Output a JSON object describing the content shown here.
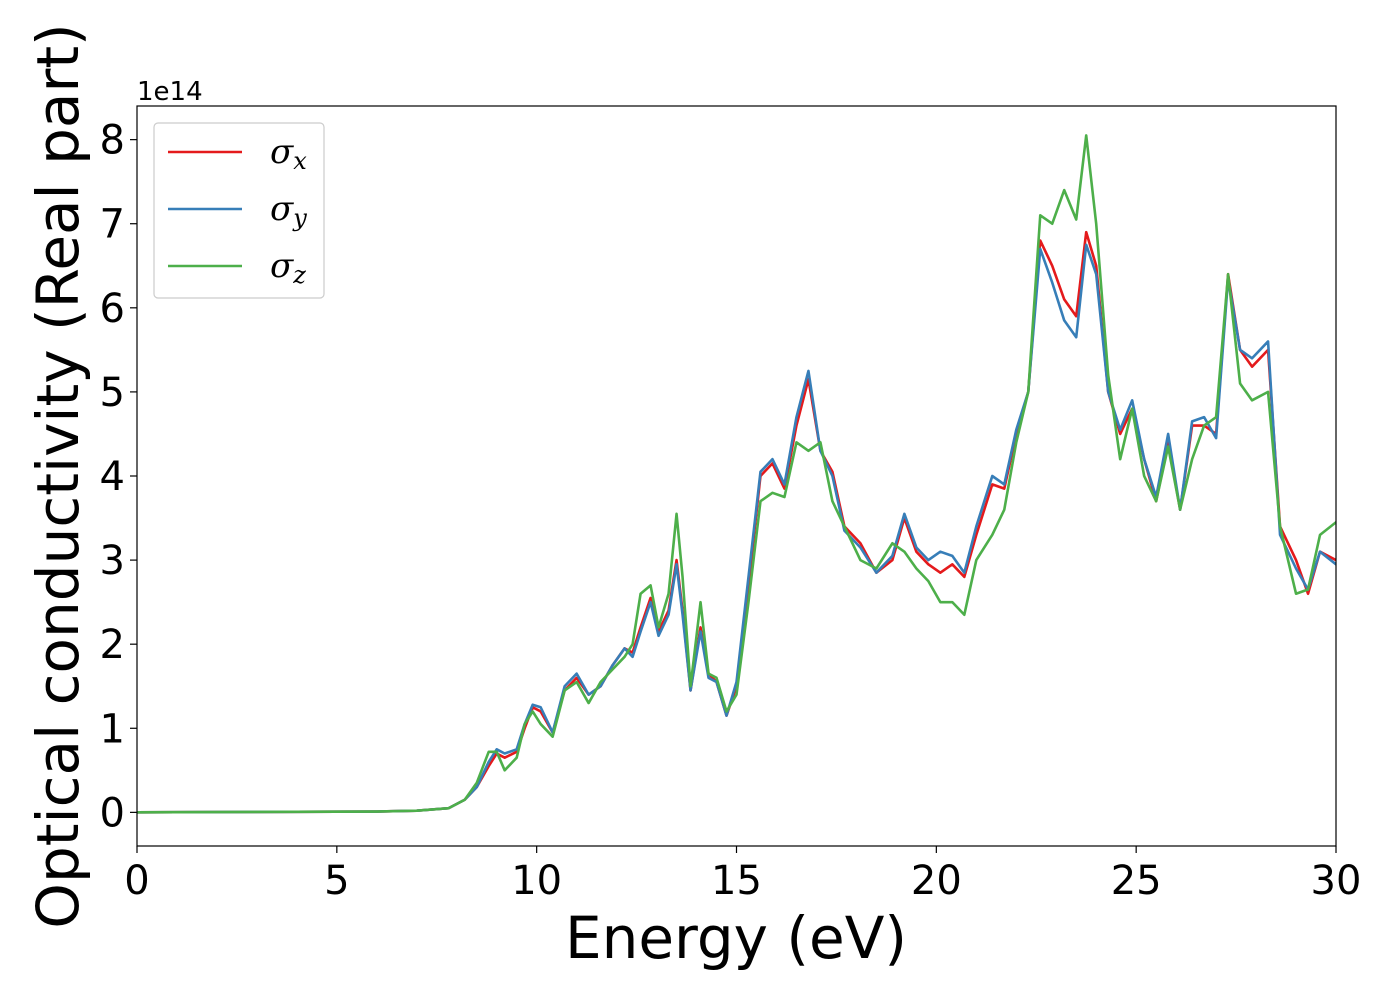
{
  "chart_data": {
    "type": "line",
    "title": "",
    "xlabel": "Energy (eV)",
    "ylabel": "Optical conductivity (Real part)",
    "y_offset_label": "1e14",
    "xlim": [
      0,
      30
    ],
    "ylim": [
      -0.4,
      8.4
    ],
    "x_ticks": [
      0,
      5,
      10,
      15,
      20,
      25,
      30
    ],
    "y_ticks": [
      0,
      1,
      2,
      3,
      4,
      5,
      6,
      7,
      8
    ],
    "grid": false,
    "legend_position": "upper-left",
    "series": [
      {
        "name": "σx",
        "symbol": "σ",
        "subscript": "x",
        "color": "#e41a1c",
        "points": [
          [
            0,
            0
          ],
          [
            6,
            0.01
          ],
          [
            7,
            0.02
          ],
          [
            7.8,
            0.05
          ],
          [
            8.2,
            0.15
          ],
          [
            8.5,
            0.3
          ],
          [
            8.8,
            0.55
          ],
          [
            9.0,
            0.7
          ],
          [
            9.2,
            0.65
          ],
          [
            9.5,
            0.72
          ],
          [
            9.7,
            1.0
          ],
          [
            9.9,
            1.25
          ],
          [
            10.1,
            1.2
          ],
          [
            10.4,
            0.95
          ],
          [
            10.7,
            1.45
          ],
          [
            11.0,
            1.6
          ],
          [
            11.3,
            1.4
          ],
          [
            11.6,
            1.5
          ],
          [
            11.9,
            1.75
          ],
          [
            12.2,
            1.95
          ],
          [
            12.4,
            1.9
          ],
          [
            12.6,
            2.2
          ],
          [
            12.85,
            2.55
          ],
          [
            13.05,
            2.15
          ],
          [
            13.3,
            2.4
          ],
          [
            13.5,
            3.0
          ],
          [
            13.65,
            2.4
          ],
          [
            13.85,
            1.45
          ],
          [
            14.1,
            2.2
          ],
          [
            14.3,
            1.65
          ],
          [
            14.5,
            1.55
          ],
          [
            14.75,
            1.15
          ],
          [
            15.0,
            1.5
          ],
          [
            15.3,
            2.7
          ],
          [
            15.6,
            4.0
          ],
          [
            15.9,
            4.15
          ],
          [
            16.2,
            3.85
          ],
          [
            16.5,
            4.6
          ],
          [
            16.8,
            5.15
          ],
          [
            17.1,
            4.3
          ],
          [
            17.4,
            4.05
          ],
          [
            17.7,
            3.4
          ],
          [
            18.1,
            3.2
          ],
          [
            18.5,
            2.85
          ],
          [
            18.9,
            3.0
          ],
          [
            19.2,
            3.5
          ],
          [
            19.5,
            3.1
          ],
          [
            19.8,
            2.95
          ],
          [
            20.1,
            2.85
          ],
          [
            20.4,
            2.95
          ],
          [
            20.7,
            2.8
          ],
          [
            21.0,
            3.3
          ],
          [
            21.4,
            3.9
          ],
          [
            21.7,
            3.85
          ],
          [
            22.0,
            4.5
          ],
          [
            22.3,
            5.0
          ],
          [
            22.6,
            6.8
          ],
          [
            22.9,
            6.5
          ],
          [
            23.2,
            6.1
          ],
          [
            23.5,
            5.9
          ],
          [
            23.75,
            6.9
          ],
          [
            24.0,
            6.5
          ],
          [
            24.3,
            5.0
          ],
          [
            24.6,
            4.5
          ],
          [
            24.9,
            4.8
          ],
          [
            25.2,
            4.2
          ],
          [
            25.5,
            3.7
          ],
          [
            25.8,
            4.4
          ],
          [
            26.1,
            3.6
          ],
          [
            26.4,
            4.6
          ],
          [
            26.7,
            4.6
          ],
          [
            27.0,
            4.5
          ],
          [
            27.3,
            6.4
          ],
          [
            27.6,
            5.5
          ],
          [
            27.9,
            5.3
          ],
          [
            28.3,
            5.5
          ],
          [
            28.6,
            3.4
          ],
          [
            29.0,
            3.0
          ],
          [
            29.3,
            2.6
          ],
          [
            29.6,
            3.1
          ],
          [
            30.0,
            3.0
          ]
        ]
      },
      {
        "name": "σy",
        "symbol": "σ",
        "subscript": "y",
        "color": "#377eb8",
        "points": [
          [
            0,
            0
          ],
          [
            6,
            0.01
          ],
          [
            7,
            0.02
          ],
          [
            7.8,
            0.05
          ],
          [
            8.2,
            0.15
          ],
          [
            8.5,
            0.3
          ],
          [
            8.8,
            0.6
          ],
          [
            9.0,
            0.75
          ],
          [
            9.2,
            0.7
          ],
          [
            9.5,
            0.75
          ],
          [
            9.7,
            1.05
          ],
          [
            9.9,
            1.28
          ],
          [
            10.1,
            1.25
          ],
          [
            10.4,
            0.95
          ],
          [
            10.7,
            1.5
          ],
          [
            11.0,
            1.65
          ],
          [
            11.3,
            1.4
          ],
          [
            11.6,
            1.5
          ],
          [
            11.9,
            1.75
          ],
          [
            12.2,
            1.95
          ],
          [
            12.4,
            1.85
          ],
          [
            12.6,
            2.15
          ],
          [
            12.85,
            2.5
          ],
          [
            13.05,
            2.1
          ],
          [
            13.3,
            2.35
          ],
          [
            13.5,
            2.95
          ],
          [
            13.65,
            2.35
          ],
          [
            13.85,
            1.45
          ],
          [
            14.1,
            2.15
          ],
          [
            14.3,
            1.6
          ],
          [
            14.5,
            1.55
          ],
          [
            14.75,
            1.15
          ],
          [
            15.0,
            1.55
          ],
          [
            15.3,
            2.8
          ],
          [
            15.6,
            4.05
          ],
          [
            15.9,
            4.2
          ],
          [
            16.2,
            3.9
          ],
          [
            16.5,
            4.7
          ],
          [
            16.8,
            5.25
          ],
          [
            17.1,
            4.3
          ],
          [
            17.4,
            4.0
          ],
          [
            17.7,
            3.35
          ],
          [
            18.1,
            3.15
          ],
          [
            18.5,
            2.85
          ],
          [
            18.9,
            3.05
          ],
          [
            19.2,
            3.55
          ],
          [
            19.5,
            3.15
          ],
          [
            19.8,
            3.0
          ],
          [
            20.1,
            3.1
          ],
          [
            20.4,
            3.05
          ],
          [
            20.7,
            2.85
          ],
          [
            21.0,
            3.4
          ],
          [
            21.4,
            4.0
          ],
          [
            21.7,
            3.9
          ],
          [
            22.0,
            4.55
          ],
          [
            22.3,
            5.0
          ],
          [
            22.6,
            6.7
          ],
          [
            22.9,
            6.3
          ],
          [
            23.2,
            5.85
          ],
          [
            23.5,
            5.65
          ],
          [
            23.75,
            6.75
          ],
          [
            24.0,
            6.4
          ],
          [
            24.3,
            5.0
          ],
          [
            24.6,
            4.55
          ],
          [
            24.9,
            4.9
          ],
          [
            25.2,
            4.2
          ],
          [
            25.5,
            3.75
          ],
          [
            25.8,
            4.5
          ],
          [
            26.1,
            3.6
          ],
          [
            26.4,
            4.65
          ],
          [
            26.7,
            4.7
          ],
          [
            27.0,
            4.45
          ],
          [
            27.3,
            6.35
          ],
          [
            27.6,
            5.5
          ],
          [
            27.9,
            5.4
          ],
          [
            28.3,
            5.6
          ],
          [
            28.6,
            3.3
          ],
          [
            29.0,
            2.9
          ],
          [
            29.3,
            2.65
          ],
          [
            29.6,
            3.1
          ],
          [
            30.0,
            2.95
          ]
        ]
      },
      {
        "name": "σz",
        "symbol": "σ",
        "subscript": "z",
        "color": "#4daf4a",
        "points": [
          [
            0,
            0
          ],
          [
            6,
            0.01
          ],
          [
            7,
            0.02
          ],
          [
            7.8,
            0.05
          ],
          [
            8.2,
            0.15
          ],
          [
            8.5,
            0.35
          ],
          [
            8.8,
            0.72
          ],
          [
            9.0,
            0.72
          ],
          [
            9.2,
            0.5
          ],
          [
            9.5,
            0.65
          ],
          [
            9.7,
            1.05
          ],
          [
            9.9,
            1.2
          ],
          [
            10.1,
            1.05
          ],
          [
            10.4,
            0.9
          ],
          [
            10.7,
            1.45
          ],
          [
            11.0,
            1.55
          ],
          [
            11.3,
            1.3
          ],
          [
            11.6,
            1.55
          ],
          [
            11.9,
            1.7
          ],
          [
            12.2,
            1.85
          ],
          [
            12.4,
            2.0
          ],
          [
            12.6,
            2.6
          ],
          [
            12.85,
            2.7
          ],
          [
            13.05,
            2.2
          ],
          [
            13.3,
            2.6
          ],
          [
            13.5,
            3.55
          ],
          [
            13.65,
            2.8
          ],
          [
            13.85,
            1.5
          ],
          [
            14.1,
            2.5
          ],
          [
            14.3,
            1.65
          ],
          [
            14.5,
            1.6
          ],
          [
            14.75,
            1.2
          ],
          [
            15.0,
            1.4
          ],
          [
            15.3,
            2.5
          ],
          [
            15.6,
            3.7
          ],
          [
            15.9,
            3.8
          ],
          [
            16.2,
            3.75
          ],
          [
            16.5,
            4.4
          ],
          [
            16.8,
            4.3
          ],
          [
            17.1,
            4.4
          ],
          [
            17.4,
            3.7
          ],
          [
            17.7,
            3.4
          ],
          [
            18.1,
            3.0
          ],
          [
            18.5,
            2.9
          ],
          [
            18.9,
            3.2
          ],
          [
            19.2,
            3.1
          ],
          [
            19.5,
            2.9
          ],
          [
            19.8,
            2.75
          ],
          [
            20.1,
            2.5
          ],
          [
            20.4,
            2.5
          ],
          [
            20.7,
            2.35
          ],
          [
            21.0,
            3.0
          ],
          [
            21.4,
            3.3
          ],
          [
            21.7,
            3.6
          ],
          [
            22.0,
            4.4
          ],
          [
            22.3,
            5.0
          ],
          [
            22.6,
            7.1
          ],
          [
            22.9,
            7.0
          ],
          [
            23.2,
            7.4
          ],
          [
            23.5,
            7.05
          ],
          [
            23.75,
            8.05
          ],
          [
            24.0,
            7.0
          ],
          [
            24.3,
            5.2
          ],
          [
            24.6,
            4.2
          ],
          [
            24.9,
            4.8
          ],
          [
            25.2,
            4.0
          ],
          [
            25.5,
            3.7
          ],
          [
            25.8,
            4.35
          ],
          [
            26.1,
            3.6
          ],
          [
            26.4,
            4.2
          ],
          [
            26.7,
            4.6
          ],
          [
            27.0,
            4.7
          ],
          [
            27.3,
            6.4
          ],
          [
            27.6,
            5.1
          ],
          [
            27.9,
            4.9
          ],
          [
            28.3,
            5.0
          ],
          [
            28.6,
            3.4
          ],
          [
            29.0,
            2.6
          ],
          [
            29.3,
            2.65
          ],
          [
            29.6,
            3.3
          ],
          [
            30.0,
            3.45
          ]
        ]
      }
    ]
  }
}
